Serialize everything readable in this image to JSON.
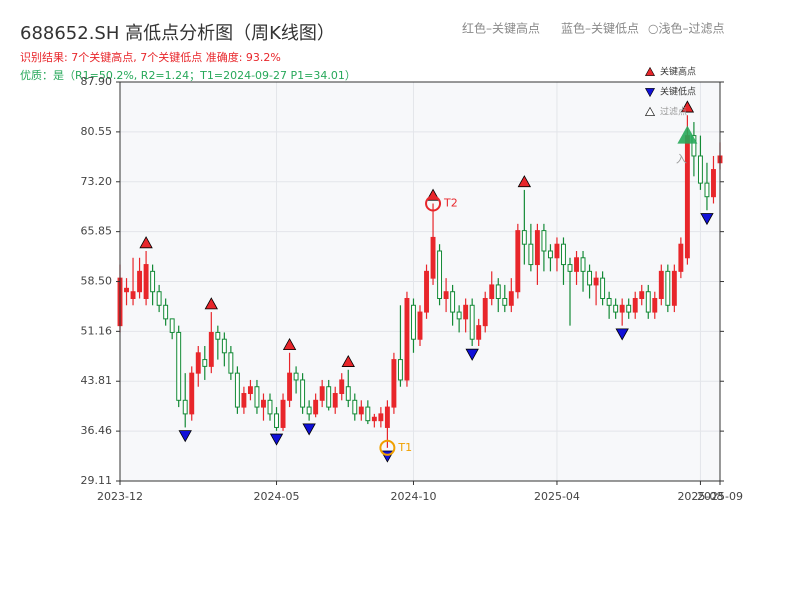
{
  "chart_data": {
    "type": "candlestick",
    "title": "688652.SH 高低点分析图（周K线图）",
    "subtitle": "识别结果: 7个关键高点, 7个关键低点  准确度: 93.2%",
    "quality": "优质：是（R1=50.2%, R2=1.24；T1=2024-09-27 P1=34.01）",
    "top_legend": [
      "红色–关键高点",
      "蓝色–关键低点",
      "○浅色–过滤点"
    ],
    "legend": [
      "关键高点",
      "关键低点",
      "过滤点"
    ],
    "up_color": "#e8262b",
    "down_color": "#138a36",
    "high_color": "#e8262b",
    "low_color": "#1010d8",
    "xlim": [
      0,
      92
    ],
    "xticks": [
      {
        "value": 0,
        "label": "2023-12"
      },
      {
        "value": 24,
        "label": "2024-05"
      },
      {
        "value": 45,
        "label": "2024-10"
      },
      {
        "value": 67,
        "label": "2025-04"
      },
      {
        "value": 89,
        "label": "2025-08"
      },
      {
        "value": 92,
        "label": "2025-09"
      }
    ],
    "ylim": [
      29.11,
      87.9
    ],
    "yticks": [
      29.11,
      36.46,
      43.81,
      51.16,
      {
        "value": 58.5,
        "label": "58.50"
      },
      65.85,
      {
        "value": 73.2,
        "label": "73.20"
      },
      80.55,
      {
        "value": 87.9,
        "label": "87.90"
      }
    ],
    "grid": true,
    "open": [
      52,
      57,
      56,
      57,
      56,
      60,
      57,
      55,
      53,
      51,
      41,
      39,
      45,
      47,
      46,
      51,
      50,
      48,
      45,
      40,
      42,
      43,
      40,
      41,
      39,
      37,
      41,
      45,
      44,
      40,
      39,
      41,
      43,
      40,
      42,
      43,
      41,
      39,
      40,
      38,
      38,
      37,
      40,
      47,
      44,
      55,
      50,
      54,
      59,
      63,
      56,
      57,
      54,
      53,
      55,
      50,
      52,
      56,
      58,
      56,
      55,
      57,
      66,
      64,
      61,
      66,
      63,
      62,
      64,
      61,
      60,
      62,
      60,
      58,
      59,
      56,
      55,
      54,
      55,
      54,
      56,
      57,
      54,
      56,
      60,
      55,
      60,
      62,
      80,
      77,
      73,
      71,
      76
    ],
    "high": [
      61,
      59,
      62,
      62,
      63,
      61,
      58,
      56,
      53,
      52,
      45,
      46,
      49,
      49,
      54,
      52,
      51,
      49,
      46,
      43,
      44,
      44,
      42,
      42,
      40,
      42,
      48,
      46,
      45,
      41,
      42,
      44,
      44,
      43,
      45,
      45.5,
      42,
      41,
      41,
      39,
      40,
      41,
      48,
      55,
      57,
      56,
      55,
      61,
      70,
      64,
      59,
      58,
      55,
      56,
      56,
      53,
      57,
      60,
      59,
      58,
      59,
      67,
      72,
      67,
      67,
      67,
      64,
      65,
      65,
      62,
      63,
      63,
      61,
      60,
      60,
      57,
      56,
      56,
      56,
      57,
      58,
      58,
      57,
      61,
      61,
      61,
      65,
      83,
      82,
      80,
      76,
      77,
      79
    ],
    "low": [
      51,
      55,
      55,
      56,
      55,
      55,
      54,
      52,
      50,
      40,
      37,
      38,
      43,
      44,
      45,
      47,
      46,
      44,
      39,
      39,
      41,
      39,
      38,
      38,
      36.5,
      36.5,
      40,
      42,
      39,
      38,
      38.5,
      40,
      39.5,
      39,
      41,
      40,
      38,
      38,
      37.5,
      37,
      37,
      34,
      39,
      43,
      43,
      48,
      49,
      53,
      58,
      55,
      54,
      52,
      51,
      51,
      49,
      49,
      51,
      55,
      54,
      54,
      54,
      56,
      61,
      60,
      58,
      60,
      60,
      60,
      58,
      52,
      58,
      57,
      56,
      55,
      55,
      53,
      53,
      52,
      53,
      53,
      55,
      53,
      53,
      55,
      54,
      54,
      59,
      61,
      74,
      72,
      69,
      70,
      75
    ],
    "close": [
      59,
      57.5,
      57,
      60,
      61,
      57,
      55,
      53,
      51,
      41,
      39,
      45,
      48,
      46,
      51,
      50,
      48,
      45,
      40,
      42,
      43,
      40,
      41,
      39,
      37,
      41,
      45,
      44,
      40,
      39,
      41,
      43,
      40,
      42,
      44,
      41,
      39,
      40,
      38,
      38.5,
      39,
      40,
      47,
      44,
      56,
      50,
      54,
      60,
      65,
      56,
      57,
      54,
      53,
      55,
      50,
      52,
      56,
      58,
      56,
      55,
      57,
      66,
      64,
      61,
      66,
      63,
      62,
      64,
      61,
      60,
      62,
      60,
      58,
      59,
      56,
      55,
      54,
      55,
      54,
      56,
      57,
      54,
      56,
      60,
      55,
      60,
      64,
      80,
      77,
      73,
      71,
      75,
      77
    ],
    "key_highs": [
      4,
      14,
      26,
      35,
      48,
      62,
      87
    ],
    "key_lows": [
      10,
      24,
      29,
      41,
      54,
      77,
      90
    ],
    "t1": {
      "index": 41,
      "label": "T1",
      "color": "#f0a000"
    },
    "t2": {
      "index": 48,
      "label": "T2",
      "color": "#e8262b"
    },
    "entry": {
      "index": 87,
      "label": "入",
      "color": "#27a85a"
    }
  }
}
